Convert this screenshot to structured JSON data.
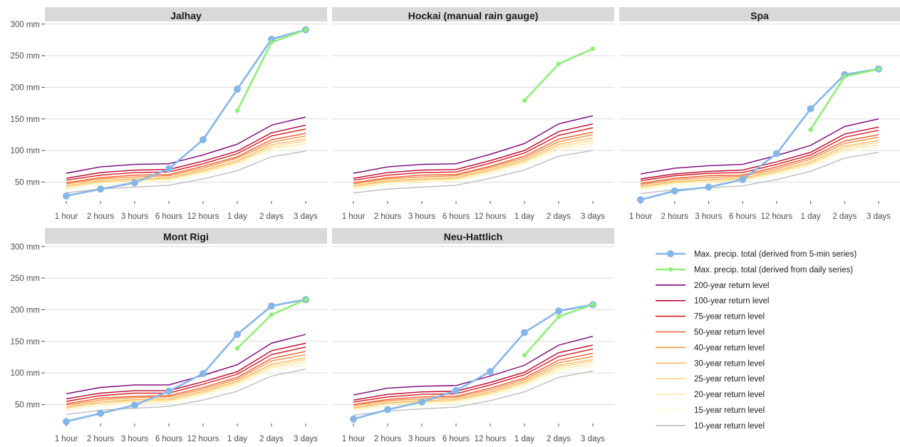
{
  "chart_data": {
    "type": "line",
    "facet_layout": "3 columns x 2 rows",
    "shared_y_axis_ticks": [
      "50 mm",
      "100 mm",
      "150 mm",
      "200 mm",
      "250 mm",
      "300 mm"
    ],
    "y_tick_values": [
      50,
      100,
      150,
      200,
      250,
      300
    ],
    "ylim": [
      20,
      302
    ],
    "categories": [
      "1 hour",
      "2 hours",
      "3 hours",
      "6 hours",
      "12 hours",
      "1 day",
      "2 days",
      "3 days"
    ],
    "grid": "horizontal major gridlines",
    "legend_position": "bottom-right empty facet slot",
    "legend": [
      {
        "label": "Max. precip. total (derived from 5-min series)",
        "color": "#85b6e8",
        "style": "line-with-points"
      },
      {
        "label": "Max. precip. total (derived from daily series)",
        "color": "#90ee7a",
        "style": "line-with-points"
      },
      {
        "label": "200-year return level",
        "color": "#7a0177",
        "style": "line"
      },
      {
        "label": "100-year return level",
        "color": "#b8002f",
        "style": "line"
      },
      {
        "label": "75-year return level",
        "color": "#d7191c",
        "style": "line"
      },
      {
        "label": "50-year return level",
        "color": "#f05a2b",
        "style": "line"
      },
      {
        "label": "40-year return level",
        "color": "#f68f3f",
        "style": "line"
      },
      {
        "label": "30-year return level",
        "color": "#fbb861",
        "style": "line"
      },
      {
        "label": "25-year return level",
        "color": "#fdd98a",
        "style": "line"
      },
      {
        "label": "20-year return level",
        "color": "#fee9a6",
        "style": "line"
      },
      {
        "label": "15-year return level",
        "color": "#fff8d2",
        "style": "line"
      },
      {
        "label": "10-year return level",
        "color": "#bdbdbd",
        "style": "line"
      }
    ],
    "facets": [
      {
        "title": "Jalhay",
        "series_5min": [
          28,
          39,
          49,
          71,
          117,
          197,
          276,
          291
        ],
        "series_daily": [
          null,
          null,
          null,
          null,
          null,
          163,
          271,
          291
        ],
        "return_levels": {
          "200": [
            64,
            74,
            78,
            79,
            93,
            110,
            140,
            153
          ],
          "100": [
            56,
            65,
            69,
            70,
            83,
            99,
            128,
            140
          ],
          "75": [
            53,
            61,
            65,
            66,
            79,
            95,
            123,
            134
          ],
          "50": [
            49,
            57,
            61,
            62,
            75,
            90,
            117,
            127
          ],
          "40": [
            47,
            55,
            58,
            60,
            72,
            88,
            113,
            123
          ],
          "30": [
            44,
            52,
            55,
            57,
            69,
            84,
            109,
            118
          ],
          "25": [
            43,
            51,
            54,
            56,
            67,
            82,
            106,
            115
          ],
          "20": [
            41,
            49,
            52,
            54,
            65,
            80,
            103,
            111
          ],
          "15": [
            39,
            46,
            49,
            52,
            62,
            77,
            99,
            107
          ],
          "10": [
            33,
            39,
            42,
            45,
            55,
            68,
            90,
            99
          ]
        }
      },
      {
        "title": "Hockai (manual rain gauge)",
        "series_5min": [],
        "series_daily": [
          null,
          null,
          null,
          null,
          null,
          179,
          237,
          261
        ],
        "return_levels": {
          "200": [
            64,
            74,
            78,
            79,
            94,
            111,
            142,
            155
          ],
          "100": [
            56,
            65,
            69,
            70,
            84,
            100,
            130,
            142
          ],
          "75": [
            53,
            61,
            65,
            66,
            80,
            96,
            124,
            136
          ],
          "50": [
            49,
            57,
            61,
            62,
            75,
            91,
            118,
            129
          ],
          "40": [
            47,
            55,
            58,
            60,
            73,
            88,
            114,
            125
          ],
          "30": [
            44,
            52,
            55,
            57,
            70,
            85,
            110,
            120
          ],
          "25": [
            43,
            51,
            54,
            56,
            68,
            83,
            107,
            116
          ],
          "20": [
            41,
            49,
            52,
            54,
            66,
            81,
            104,
            112
          ],
          "15": [
            39,
            46,
            49,
            52,
            63,
            78,
            100,
            108
          ],
          "10": [
            33,
            39,
            42,
            45,
            56,
            69,
            91,
            100
          ]
        }
      },
      {
        "title": "Spa",
        "series_5min": [
          22,
          36,
          42,
          54,
          95,
          166,
          220,
          229
        ],
        "series_daily": [
          null,
          null,
          null,
          null,
          null,
          133,
          217,
          229
        ],
        "return_levels": {
          "200": [
            63,
            72,
            76,
            78,
            92,
            108,
            138,
            150
          ],
          "100": [
            55,
            63,
            67,
            69,
            82,
            97,
            126,
            137
          ],
          "75": [
            52,
            60,
            64,
            65,
            78,
            93,
            121,
            132
          ],
          "50": [
            48,
            56,
            60,
            61,
            74,
            89,
            115,
            125
          ],
          "40": [
            46,
            54,
            57,
            59,
            71,
            86,
            111,
            121
          ],
          "30": [
            43,
            51,
            54,
            56,
            68,
            82,
            107,
            116
          ],
          "25": [
            42,
            50,
            53,
            55,
            66,
            80,
            104,
            113
          ],
          "20": [
            40,
            48,
            51,
            53,
            64,
            78,
            101,
            109
          ],
          "15": [
            38,
            45,
            48,
            51,
            61,
            75,
            97,
            105
          ],
          "10": [
            32,
            38,
            41,
            44,
            54,
            67,
            88,
            97
          ]
        }
      },
      {
        "title": "Mont Rigi",
        "series_5min": [
          23,
          36,
          49,
          71,
          99,
          161,
          206,
          216
        ],
        "series_daily": [
          null,
          null,
          null,
          null,
          null,
          139,
          192,
          216
        ],
        "return_levels": {
          "200": [
            67,
            77,
            81,
            81,
            96,
            113,
            147,
            161
          ],
          "100": [
            59,
            68,
            72,
            72,
            86,
            102,
            135,
            147
          ],
          "75": [
            55,
            64,
            68,
            68,
            82,
            98,
            129,
            141
          ],
          "50": [
            51,
            60,
            63,
            64,
            77,
            93,
            123,
            134
          ],
          "40": [
            49,
            57,
            61,
            62,
            74,
            90,
            119,
            129
          ],
          "30": [
            46,
            54,
            58,
            59,
            71,
            87,
            114,
            124
          ],
          "25": [
            45,
            53,
            56,
            57,
            69,
            85,
            111,
            121
          ],
          "20": [
            43,
            51,
            54,
            55,
            67,
            82,
            108,
            117
          ],
          "15": [
            41,
            48,
            51,
            53,
            64,
            79,
            104,
            113
          ],
          "10": [
            34,
            41,
            44,
            47,
            57,
            71,
            95,
            106
          ]
        }
      },
      {
        "title": "Neu-Hattlich",
        "series_5min": [
          27,
          42,
          54,
          72,
          102,
          164,
          198,
          208
        ],
        "series_daily": [
          null,
          null,
          null,
          null,
          null,
          128,
          189,
          208
        ],
        "return_levels": {
          "200": [
            65,
            76,
            79,
            80,
            95,
            112,
            144,
            158
          ],
          "100": [
            57,
            66,
            70,
            71,
            85,
            101,
            132,
            144
          ],
          "75": [
            54,
            62,
            66,
            67,
            81,
            97,
            126,
            138
          ],
          "50": [
            50,
            58,
            62,
            63,
            76,
            92,
            120,
            131
          ],
          "40": [
            48,
            56,
            59,
            61,
            73,
            89,
            116,
            126
          ],
          "30": [
            45,
            53,
            56,
            58,
            70,
            86,
            112,
            121
          ],
          "25": [
            44,
            52,
            55,
            57,
            68,
            84,
            109,
            118
          ],
          "20": [
            42,
            50,
            53,
            55,
            66,
            81,
            106,
            114
          ],
          "15": [
            40,
            47,
            50,
            52,
            63,
            78,
            102,
            110
          ],
          "10": [
            33,
            40,
            43,
            46,
            56,
            70,
            93,
            103
          ]
        }
      }
    ]
  }
}
